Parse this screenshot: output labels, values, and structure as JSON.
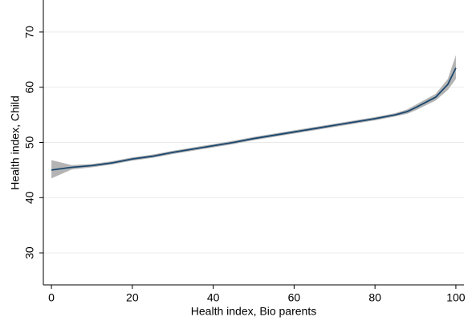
{
  "chart_data": {
    "type": "line",
    "x_label": "Health index, Bio parents",
    "y_label": "Health index, Child",
    "x": [
      0,
      5,
      10,
      15,
      20,
      25,
      30,
      35,
      40,
      45,
      50,
      55,
      60,
      65,
      70,
      75,
      80,
      85,
      88,
      90,
      95,
      98,
      100
    ],
    "values": [
      45.0,
      45.5,
      45.8,
      46.3,
      47.0,
      47.5,
      48.2,
      48.8,
      49.4,
      50.0,
      50.7,
      51.3,
      51.9,
      52.5,
      53.1,
      53.7,
      54.3,
      55.0,
      55.6,
      56.3,
      58.2,
      60.5,
      63.5
    ],
    "lower": [
      43.5,
      45.1,
      45.5,
      46.0,
      46.7,
      47.2,
      47.9,
      48.5,
      49.1,
      49.7,
      50.4,
      51.0,
      51.6,
      52.2,
      52.8,
      53.4,
      54.0,
      54.7,
      55.2,
      55.8,
      57.6,
      59.5,
      61.5
    ],
    "upper": [
      46.8,
      45.9,
      46.1,
      46.6,
      47.3,
      47.8,
      48.5,
      49.1,
      49.7,
      50.3,
      51.0,
      51.6,
      52.2,
      52.8,
      53.4,
      54.0,
      54.6,
      55.3,
      56.0,
      56.8,
      58.8,
      61.5,
      65.8
    ],
    "color": "#1a476f",
    "band_color": "#b4b4b4",
    "xlim": [
      -2,
      102
    ],
    "ylim": [
      24.2,
      75.8
    ],
    "xticks": [
      0,
      20,
      40,
      60,
      80,
      100
    ],
    "yticks": [
      30,
      40,
      50,
      60,
      70
    ],
    "grid": true
  }
}
